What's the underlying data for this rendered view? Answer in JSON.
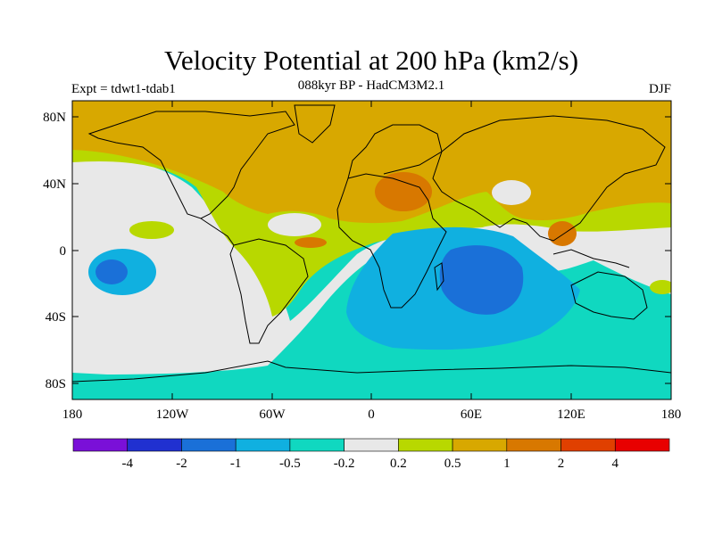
{
  "title": "Velocity Potential at 200 hPa (km2/s)",
  "subtitle": "088kyr BP - HadCM3M2.1",
  "left_label": "Expt = tdwt1-tdab1",
  "right_label": "DJF",
  "lat_labels": [
    "80N",
    "40N",
    "0",
    "40S",
    "80S"
  ],
  "lon_labels": [
    "180",
    "120W",
    "60W",
    "0",
    "60E",
    "120E",
    "180"
  ],
  "colorbar": {
    "colors": [
      "#7a10d8",
      "#2030d0",
      "#1a70d8",
      "#10b0e0",
      "#10d8c0",
      "#e8e8e8",
      "#b8d800",
      "#d8a800",
      "#d87800",
      "#e04000",
      "#e80000"
    ],
    "labels": [
      "-4",
      "-2",
      "-1",
      "-0.5",
      "-0.2",
      "0.2",
      "0.5",
      "1",
      "2",
      "4"
    ]
  }
}
